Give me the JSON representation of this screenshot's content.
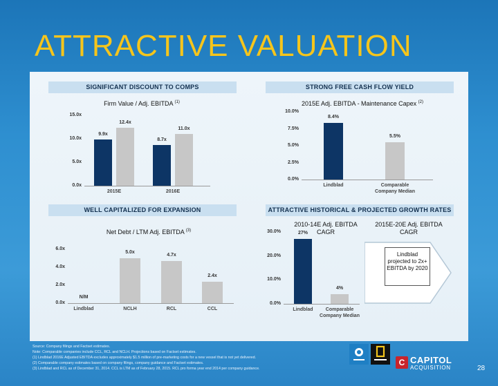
{
  "title": "ATTRACTIVE VALUATION",
  "sections": {
    "s1_header": "SIGNIFICANT DISCOUNT TO COMPS",
    "s2_header": "STRONG FREE CASH FLOW YIELD",
    "s3_header": "WELL CAPITALIZED FOR EXPANSION",
    "s4_header": "ATTRACTIVE HISTORICAL & PROJECTED GROWTH RATES"
  },
  "callout_title": "2015E-20E Adj. EBITDA CAGR",
  "callout_text": "Lindblad projected to 2x+ EBITDA by 2020",
  "footnotes": [
    "Source: Company filings and Factset estimates.",
    "Note: Comparable companies include CCL, RCL and NCLH. Projections based on Factset estimates.",
    "(1) Lindblad 2016E Adjusted EBITDA excludes approximately $1.5 million of pre-marketing costs for a new vessel that is not yet delivered.",
    "(2) Comparable company estimates based on company filings, company guidance and Factset estimates.",
    "(3) Lindblad and RCL as of December 31, 2014. CCL is LTM as of February 28, 2015. RCL pro forma year end 2014 per company guidance."
  ],
  "logos": {
    "capitol_line1": "CAPITOL",
    "capitol_line2": "ACQUISITION",
    "capitol_mark": "C"
  },
  "page_number": "28",
  "colors": {
    "navy": "#0d3565",
    "gray": "#c7c7c7",
    "title": "#f5c51c"
  },
  "chart_data": [
    {
      "type": "bar",
      "title": "Firm Value / Adj. EBITDA",
      "title_sup": "(1)",
      "categories": [
        "2015E",
        "2016E"
      ],
      "series": [
        {
          "values": [
            9.9,
            8.7
          ],
          "labels": [
            "9.9x",
            "8.7x"
          ]
        },
        {
          "values": [
            12.4,
            11.0
          ],
          "labels": [
            "12.4x",
            "11.0x"
          ]
        }
      ],
      "yticks": [
        "15.0x",
        "10.0x",
        "5.0x",
        "0.0x"
      ],
      "ylim": [
        0,
        15
      ]
    },
    {
      "type": "bar",
      "title": "2015E Adj. EBITDA - Maintenance Capex",
      "title_sup": "(2)",
      "categories": [
        "Lindblad",
        "Comparable Company Median"
      ],
      "values": [
        8.4,
        5.5
      ],
      "labels": [
        "8.4%",
        "5.5%"
      ],
      "yticks": [
        "10.0%",
        "7.5%",
        "5.0%",
        "2.5%",
        "0.0%"
      ],
      "ylim": [
        0,
        10
      ]
    },
    {
      "type": "bar",
      "title": "Net Debt / LTM Adj. EBITDA",
      "title_sup": "(3)",
      "categories": [
        "Lindblad",
        "NCLH",
        "RCL",
        "CCL"
      ],
      "values": [
        0,
        5.0,
        4.7,
        2.4
      ],
      "labels": [
        "N/M",
        "5.0x",
        "4.7x",
        "2.4x"
      ],
      "yticks": [
        "6.0x",
        "4.0x",
        "2.0x",
        "0.0x"
      ],
      "ylim": [
        0,
        6
      ]
    },
    {
      "type": "bar",
      "title": "2010-14E Adj. EBITDA CAGR",
      "categories": [
        "Lindblad",
        "Comparable Company Median"
      ],
      "values": [
        27,
        4
      ],
      "labels": [
        "27%",
        "4%"
      ],
      "yticks": [
        "30.0%",
        "20.0%",
        "10.0%",
        "0.0%"
      ],
      "ylim": [
        0,
        30
      ]
    }
  ]
}
